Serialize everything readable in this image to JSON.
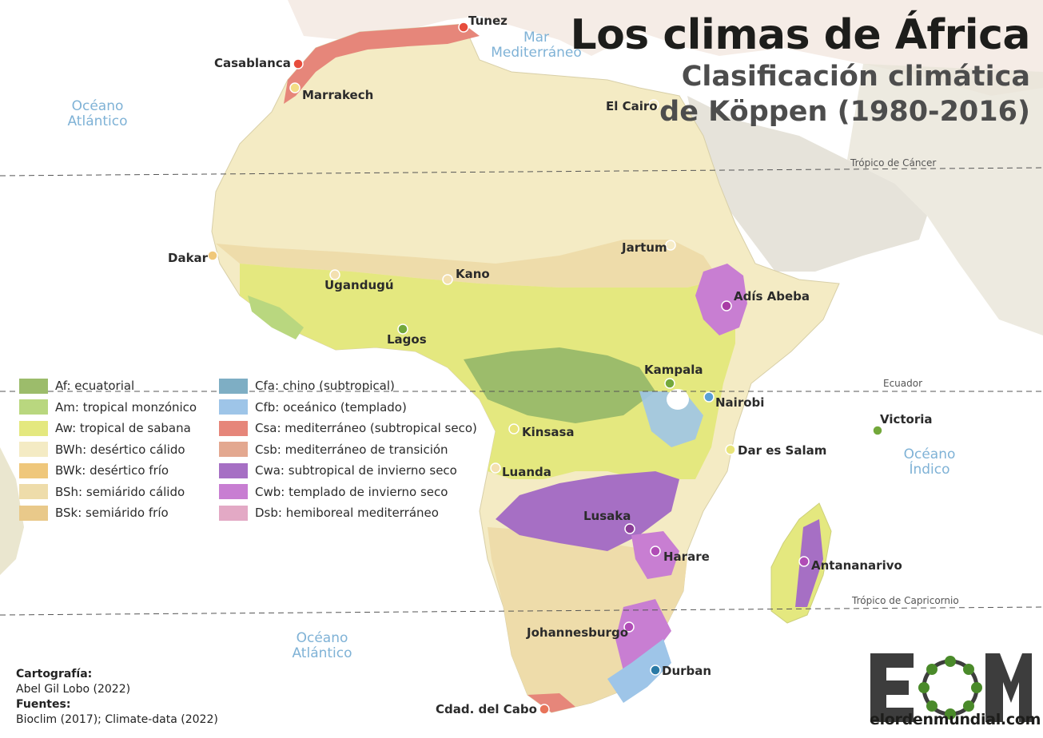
{
  "title": "Los climas de África",
  "subtitle_line1": "Clasificación climática",
  "subtitle_line2": "de Köppen (1980-2016)",
  "oceans": {
    "atlantic_north": [
      "Océano",
      "Atlántico"
    ],
    "atlantic_south": [
      "Océano",
      "Atlántico"
    ],
    "mediterranean": [
      "Mar",
      "Mediterráneo"
    ],
    "indian": [
      "Océano",
      "Índico"
    ]
  },
  "lines": {
    "cancer": "Trópico de Cáncer",
    "equator": "Ecuador",
    "capricorn": "Trópico de Capricornio"
  },
  "cities": [
    {
      "name": "Tunez",
      "color": "#e74c3c"
    },
    {
      "name": "Casablanca",
      "color": "#e74c3c"
    },
    {
      "name": "Marrakech",
      "color": "#f3dd85"
    },
    {
      "name": "El Cairo",
      "color": "#f6ecc8"
    },
    {
      "name": "Dakar",
      "color": "#f0c87a"
    },
    {
      "name": "Jartum",
      "color": "#f6ecc8"
    },
    {
      "name": "Ugandugú",
      "color": "#f3e0b0"
    },
    {
      "name": "Kano",
      "color": "#f3e0b0"
    },
    {
      "name": "Adís Abeba",
      "color": "#a93ca6"
    },
    {
      "name": "Lagos",
      "color": "#73a83b"
    },
    {
      "name": "Kampala",
      "color": "#73a83b"
    },
    {
      "name": "Nairobi",
      "color": "#5aa0d6"
    },
    {
      "name": "Victoria",
      "color": "#73a83b"
    },
    {
      "name": "Kinsasa",
      "color": "#e8e47a"
    },
    {
      "name": "Dar es Salam",
      "color": "#e8e47a"
    },
    {
      "name": "Luanda",
      "color": "#f3e0b0"
    },
    {
      "name": "Lusaka",
      "color": "#8a3c96"
    },
    {
      "name": "Harare",
      "color": "#b04cb6"
    },
    {
      "name": "Antananarivo",
      "color": "#b04cb6"
    },
    {
      "name": "Johannesburgo",
      "color": "#b04cb6"
    },
    {
      "name": "Durban",
      "color": "#2a7aa6"
    },
    {
      "name": "Cdad. del Cabo",
      "color": "#e8745a"
    }
  ],
  "legend": [
    {
      "label": "Af: ecuatorial",
      "color": "#9cbc6b"
    },
    {
      "label": "Am: tropical monzónico",
      "color": "#b9d77f"
    },
    {
      "label": "Aw: tropical de sabana",
      "color": "#e4e87f"
    },
    {
      "label": "BWh: desértico cálido",
      "color": "#f4ebc4"
    },
    {
      "label": "BWk: desértico frío",
      "color": "#efc77b"
    },
    {
      "label": "BSh: semiárido cálido",
      "color": "#eedcaa"
    },
    {
      "label": "BSk: semiárido frío",
      "color": "#e9c98a"
    },
    {
      "label": "Cfa: chino (subtropical)",
      "color": "#7eaec4"
    },
    {
      "label": "Cfb: oceánico (templado)",
      "color": "#9ec5e8"
    },
    {
      "label": "Csa: mediterráneo (subtropical seco)",
      "color": "#e6867a"
    },
    {
      "label": "Csb: mediterráneo de transición",
      "color": "#e3a890"
    },
    {
      "label": "Cwa: subtropical de invierno seco",
      "color": "#a66fc4"
    },
    {
      "label": "Cwb: templado de invierno seco",
      "color": "#c87ed2"
    },
    {
      "label": "Dsb: hemiboreal mediterráneo",
      "color": "#e3a9c5"
    }
  ],
  "credits": {
    "cartography_label": "Cartografía:",
    "cartography_value": "Abel Gil Lobo (2022)",
    "sources_label": "Fuentes:",
    "sources_value": "Bioclim (2017); Climate-data (2022)"
  },
  "logo": {
    "letters": "EOM",
    "site": "elordenmundial.com"
  }
}
